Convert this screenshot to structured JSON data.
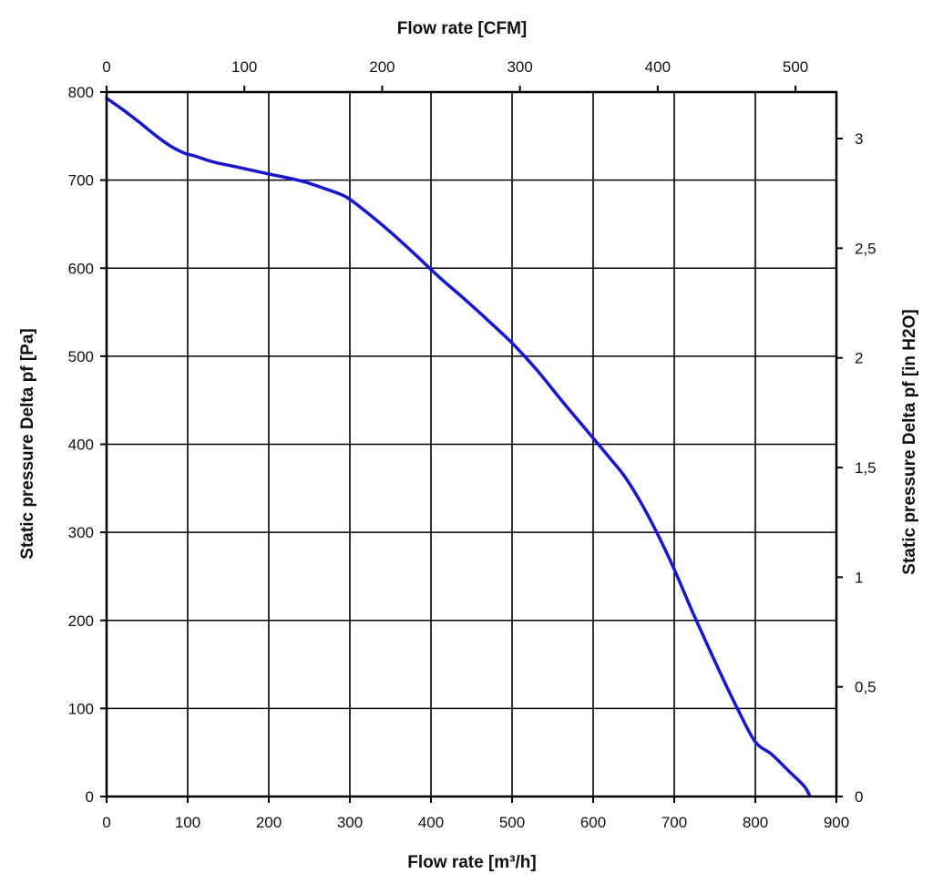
{
  "chart_data": {
    "type": "line",
    "x_bottom": {
      "label": "Flow rate [m³/h]",
      "range": [
        0,
        900
      ],
      "ticks": [
        0,
        100,
        200,
        300,
        400,
        500,
        600,
        700,
        800,
        900
      ],
      "tick_labels": [
        "0",
        "100",
        "200",
        "300",
        "400",
        "500",
        "600",
        "700",
        "800",
        "900"
      ]
    },
    "x_top": {
      "label": "Flow rate [CFM]",
      "range": [
        0,
        529.7
      ],
      "ticks": [
        0,
        100,
        200,
        300,
        400,
        500
      ],
      "tick_labels": [
        "0",
        "100",
        "200",
        "300",
        "400",
        "500"
      ]
    },
    "y_left": {
      "label": "Static pressure Delta pf [Pa]",
      "range": [
        0,
        800
      ],
      "ticks": [
        0,
        100,
        200,
        300,
        400,
        500,
        600,
        700,
        800
      ],
      "tick_labels": [
        "0",
        "100",
        "200",
        "300",
        "400",
        "500",
        "600",
        "700",
        "800"
      ]
    },
    "y_right": {
      "label": "Static pressure Delta pf [in H2O]",
      "range": [
        0,
        3.212
      ],
      "ticks": [
        0,
        0.5,
        1,
        1.5,
        2,
        2.5,
        3
      ],
      "tick_labels": [
        "0",
        "0,5",
        "1",
        "1,5",
        "2",
        "2,5",
        "3"
      ]
    },
    "grid": true,
    "series": [
      {
        "color": "#1414e6",
        "x": [
          0,
          20,
          40,
          60,
          80,
          95,
          110,
          130,
          160,
          200,
          240,
          270,
          295,
          320,
          350,
          380,
          410,
          440,
          470,
          500,
          530,
          560,
          590,
          620,
          640,
          660,
          680,
          700,
          720,
          740,
          760,
          780,
          800,
          820,
          840,
          860,
          867
        ],
        "y": [
          793,
          780,
          766,
          751,
          738,
          731,
          727,
          721,
          715,
          707,
          699,
          690,
          681,
          664,
          641,
          616,
          590,
          566,
          541,
          515,
          485,
          451,
          418,
          385,
          362,
          332,
          297,
          258,
          215,
          174,
          134,
          96,
          62,
          48,
          30,
          12,
          1
        ]
      }
    ]
  }
}
